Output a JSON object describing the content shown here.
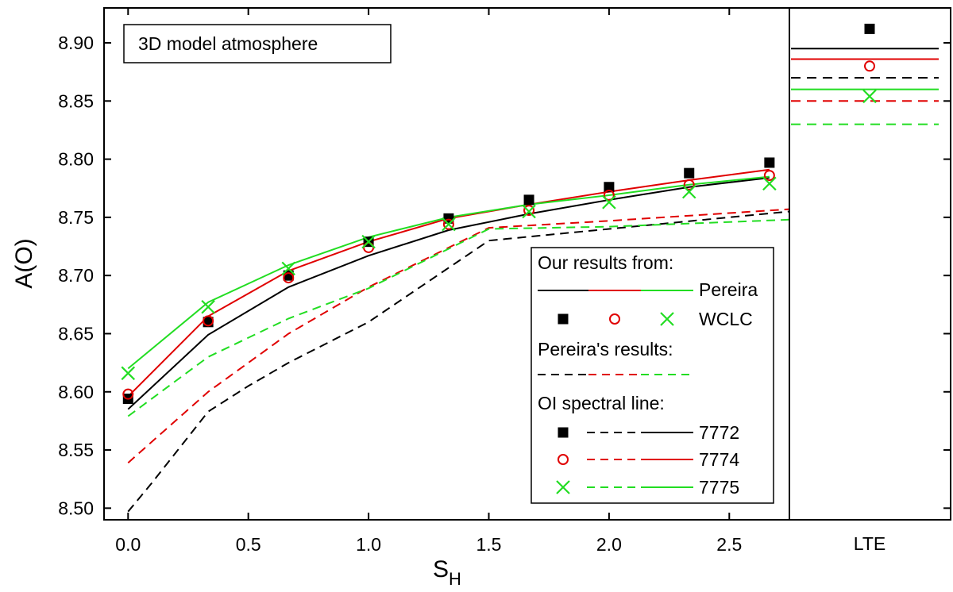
{
  "chart_data": {
    "type": "line",
    "title": "3D model atmosphere",
    "xlabel": "S",
    "xlabel_sub": "H",
    "ylabel": "A(O)",
    "xlim": [
      -0.1,
      2.75
    ],
    "ylim": [
      8.49,
      8.93
    ],
    "xticks": [
      0.0,
      0.5,
      1.0,
      1.5,
      2.0,
      2.5
    ],
    "xtick_labels": [
      "0.0",
      "0.5",
      "1.0",
      "1.5",
      "2.0",
      "2.5"
    ],
    "yticks": [
      8.5,
      8.55,
      8.6,
      8.65,
      8.7,
      8.75,
      8.8,
      8.85,
      8.9
    ],
    "ytick_labels": [
      "8.50",
      "8.55",
      "8.60",
      "8.65",
      "8.70",
      "8.75",
      "8.80",
      "8.85",
      "8.90"
    ],
    "x": [
      0.0,
      0.333,
      0.667,
      1.0,
      1.333,
      1.667,
      2.0,
      2.333,
      2.667
    ],
    "colors": {
      "7772": "#000000",
      "7774": "#e00000",
      "7775": "#22dd22"
    },
    "series": [
      {
        "name": "7772",
        "role": "Our results: Pereira",
        "style": "solid",
        "values": [
          8.585,
          8.649,
          8.69,
          8.717,
          8.739,
          8.753,
          8.765,
          8.776,
          8.784
        ]
      },
      {
        "name": "7774",
        "role": "Our results: Pereira",
        "style": "solid",
        "values": [
          8.596,
          8.665,
          8.704,
          8.729,
          8.749,
          8.761,
          8.772,
          8.782,
          8.791
        ]
      },
      {
        "name": "7775",
        "role": "Our results: Pereira",
        "style": "solid",
        "values": [
          8.62,
          8.677,
          8.709,
          8.733,
          8.75,
          8.761,
          8.769,
          8.778,
          8.785
        ]
      },
      {
        "name": "7772",
        "role": "Our results: WCLC",
        "style": "square",
        "values": [
          8.594,
          8.66,
          8.7,
          8.729,
          8.749,
          8.765,
          8.776,
          8.788,
          8.797
        ]
      },
      {
        "name": "7774",
        "role": "Our results: WCLC",
        "style": "circle",
        "values": [
          8.598,
          8.661,
          8.698,
          8.724,
          8.744,
          8.756,
          8.769,
          8.778,
          8.786
        ]
      },
      {
        "name": "7775",
        "role": "Our results: WCLC",
        "style": "cross",
        "values": [
          8.616,
          8.673,
          8.706,
          8.729,
          8.744,
          8.755,
          8.763,
          8.772,
          8.779
        ]
      },
      {
        "name": "7772",
        "role": "Pereira's results",
        "style": "dashed",
        "x": [
          0.0,
          0.1,
          0.333,
          0.5,
          0.667,
          1.0,
          1.5,
          2.0,
          2.75
        ],
        "values": [
          8.497,
          8.522,
          8.583,
          8.605,
          8.625,
          8.66,
          8.73,
          8.74,
          8.755
        ]
      },
      {
        "name": "7774",
        "role": "Pereira's results",
        "style": "dashed",
        "x": [
          0.0,
          0.333,
          0.667,
          1.0,
          1.5,
          2.0,
          2.75
        ],
        "values": [
          8.539,
          8.6,
          8.65,
          8.69,
          8.741,
          8.747,
          8.757
        ]
      },
      {
        "name": "7775",
        "role": "Pereira's results",
        "style": "dashed",
        "x": [
          0.0,
          0.333,
          0.667,
          1.0,
          1.5,
          2.0,
          2.75
        ],
        "values": [
          8.579,
          8.63,
          8.663,
          8.689,
          8.74,
          8.742,
          8.748
        ]
      }
    ],
    "lte_panel": {
      "label": "LTE",
      "lines": [
        {
          "name": "7772",
          "style": "solid",
          "value": 8.895
        },
        {
          "name": "7774",
          "style": "solid",
          "value": 8.886
        },
        {
          "name": "7772",
          "style": "dashed",
          "value": 8.87
        },
        {
          "name": "7775",
          "style": "solid",
          "value": 8.86
        },
        {
          "name": "7774",
          "style": "dashed",
          "value": 8.85
        },
        {
          "name": "7775",
          "style": "dashed",
          "value": 8.83
        }
      ],
      "markers": [
        {
          "name": "7772",
          "style": "square",
          "value": 8.912
        },
        {
          "name": "7774",
          "style": "circle",
          "value": 8.88
        },
        {
          "name": "7775",
          "style": "cross",
          "value": 8.854
        }
      ]
    },
    "legend": {
      "placement": "bottom-right",
      "heading1": "Our results from:",
      "label_pereira": "Pereira",
      "label_wclc": "WCLC",
      "heading2": "Pereira's results:",
      "heading3": "OI spectral line:",
      "lines": [
        "7772",
        "7774",
        "7775"
      ]
    },
    "grid": false
  }
}
